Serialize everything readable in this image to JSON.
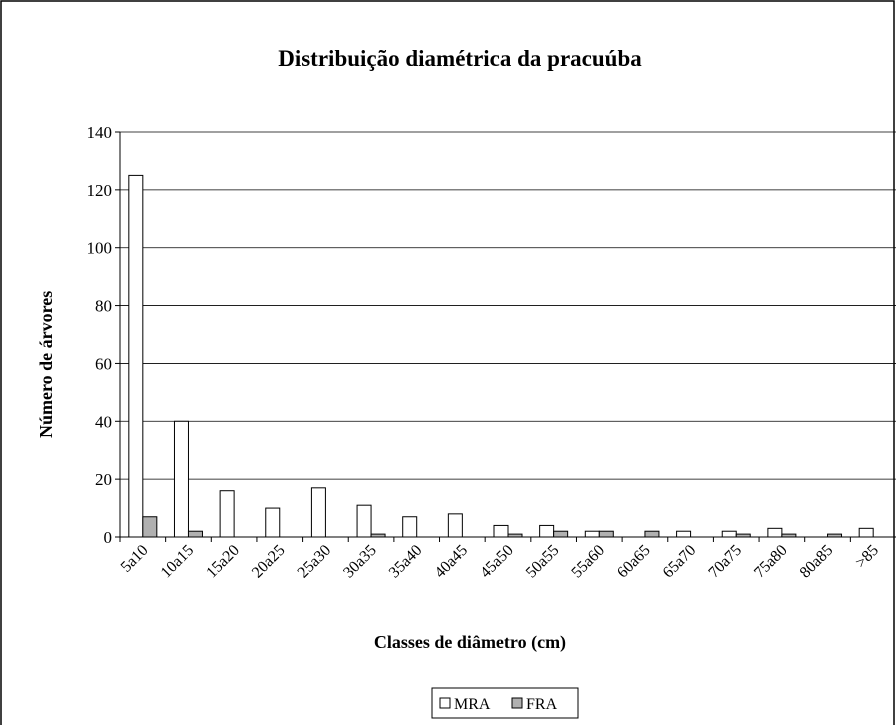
{
  "chart_data": {
    "type": "bar",
    "title": "Distribuição diamétrica da pracuúba",
    "x_label": "Classes de diâmetro (cm)",
    "y_label": "Número de árvores",
    "categories": [
      "5a10",
      "10a15",
      "15a20",
      "20a25",
      "25a30",
      "30a35",
      "35a40",
      "40a45",
      "45a50",
      "50a55",
      "55a60",
      "60a65",
      "65a70",
      "70a75",
      "75a80",
      "80a85",
      ">85"
    ],
    "series": [
      {
        "name": "MRA",
        "color": "#ffffff",
        "values": [
          125,
          40,
          16,
          10,
          17,
          11,
          7,
          8,
          4,
          4,
          2,
          0,
          2,
          2,
          3,
          0,
          3
        ]
      },
      {
        "name": "FRA",
        "color": "#b0b0b0",
        "values": [
          7,
          2,
          0,
          0,
          0,
          1,
          0,
          0,
          1,
          2,
          2,
          2,
          0,
          1,
          1,
          1,
          0
        ]
      }
    ],
    "ylim": [
      0,
      140
    ],
    "yticks": [
      0,
      20,
      40,
      60,
      80,
      100,
      120,
      140
    ],
    "grid": true,
    "legend": "bottom"
  }
}
